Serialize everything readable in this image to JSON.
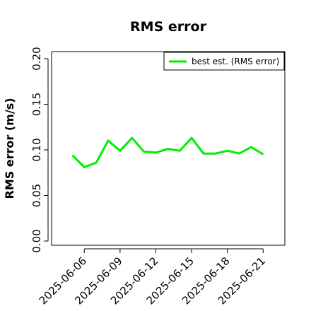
{
  "chart_data": {
    "type": "line",
    "title": "RMS error",
    "xlabel": "",
    "ylabel": "RMS error (m/s)",
    "x": [
      "2025-06-05",
      "2025-06-06",
      "2025-06-07",
      "2025-06-08",
      "2025-06-09",
      "2025-06-10",
      "2025-06-11",
      "2025-06-12",
      "2025-06-13",
      "2025-06-14",
      "2025-06-15",
      "2025-06-16",
      "2025-06-17",
      "2025-06-18",
      "2025-06-19",
      "2025-06-20",
      "2025-06-21"
    ],
    "series": [
      {
        "name": "best est. (RMS error)",
        "color": "#00ee00",
        "values": [
          0.094,
          0.081,
          0.086,
          0.11,
          0.099,
          0.113,
          0.098,
          0.097,
          0.101,
          0.099,
          0.113,
          0.096,
          0.096,
          0.099,
          0.096,
          0.103,
          0.095
        ]
      }
    ],
    "xticks": [
      "2025-06-06",
      "2025-06-09",
      "2025-06-12",
      "2025-06-15",
      "2025-06-18",
      "2025-06-21"
    ],
    "xtick_colors": [
      "#000000",
      "#000000",
      "#228b22",
      "#000000",
      "#000000",
      "#000000"
    ],
    "yticks": [
      "0.00",
      "0.05",
      "0.10",
      "0.15",
      "0.20"
    ],
    "ylim": [
      0,
      0.21
    ],
    "grid": false,
    "legend_position": "top-right"
  }
}
